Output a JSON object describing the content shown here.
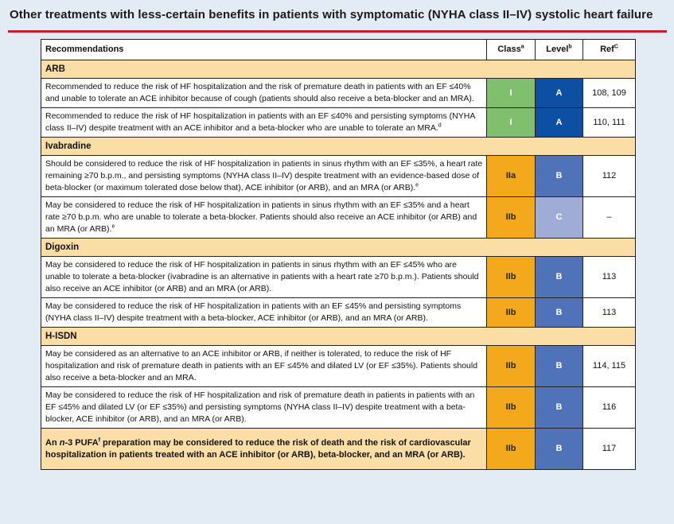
{
  "title": "Other treatments with less-certain benefits in patients with symptomatic (NYHA class II–IV) systolic heart failure",
  "header": {
    "recommendations": "Recommendations",
    "class": "Class",
    "class_sup": "a",
    "level": "Level",
    "level_sup": "b",
    "ref": "Ref",
    "ref_sup": "C"
  },
  "colors": {
    "title_rule": "#c4202b",
    "section_bg": "#fbdea6",
    "class_I": "#7fbf6e",
    "class_II": "#f4a91c",
    "level_A": "#0d4fa3",
    "level_B": "#4f72b9",
    "level_C": "#9eacd6"
  },
  "sections": [
    {
      "name": "ARB",
      "rows": [
        {
          "text": "Recommended to reduce the risk of HF hospitalization and the risk of premature death in patients with an EF ≤40% and unable to tolerate an ACE inhibitor because of cough (patients should also receive a beta-blocker and an MRA).",
          "class": "I",
          "level": "A",
          "ref": "108, 109"
        },
        {
          "text": "Recommended to reduce the risk of HF hospitalization in patients with an EF ≤40% and persisting symptoms (NYHA class II–IV) despite treatment with an ACE inhibitor and a beta-blocker who are unable to tolerate an MRA.",
          "sup": "d",
          "class": "I",
          "level": "A",
          "ref": "110, 111"
        }
      ]
    },
    {
      "name": "Ivabradine",
      "rows": [
        {
          "text": "Should be considered to reduce the risk of HF hospitalization in patients in sinus rhythm with an EF ≤35%, a heart rate remaining ≥70 b.p.m., and persisting symptoms (NYHA class II–IV) despite treatment with an evidence-based dose of beta-blocker (or maximum tolerated dose below that), ACE inhibitor (or ARB), and an MRA (or ARB).",
          "sup": "e",
          "class": "IIa",
          "level": "B",
          "ref": "112"
        },
        {
          "text": "May be considered to reduce the risk of HF hospitalization in patients in sinus rhythm with an EF ≤35% and a heart rate ≥70 b.p.m. who are unable to tolerate a beta-blocker. Patients should also receive an ACE inhibitor (or ARB) and an MRA (or ARB).",
          "sup": "e",
          "class": "IIb",
          "level": "C",
          "ref": "–"
        }
      ]
    },
    {
      "name": "Digoxin",
      "rows": [
        {
          "text": "May be considered to reduce the risk of HF hospitalization in patients in sinus rhythm with an EF ≤45% who are unable to tolerate a beta-blocker (ivabradine is an alternative in patients with a heart rate ≥70 b.p.m.). Patients should also receive an ACE inhibitor (or ARB) and an MRA (or ARB).",
          "class": "IIb",
          "level": "B",
          "ref": "113"
        },
        {
          "text": "May be considered to reduce the risk of HF hospitalization in patients with an EF ≤45% and persisting symptoms (NYHA class II–IV) despite treatment with a beta-blocker, ACE inhibitor (or ARB), and an MRA (or ARB).",
          "class": "IIb",
          "level": "B",
          "ref": "113"
        }
      ]
    },
    {
      "name": "H-ISDN",
      "rows": [
        {
          "text": "May be considered as an alternative to an ACE inhibitor or ARB, if neither is tolerated, to reduce the risk of HF hospitalization and risk of premature death in patients with an EF ≤45% and dilated LV (or EF ≤35%). Patients should also receive a beta-blocker and an MRA.",
          "class": "IIb",
          "level": "B",
          "ref": "114, 115"
        },
        {
          "text": "May be considered to reduce the risk of HF hospitalization and risk of premature death in patients in patients with an EF ≤45% and dilated LV (or EF ≤35%) and persisting symptoms (NYHA class II–IV) despite treatment with a beta-blocker, ACE inhibitor (or ARB), and an MRA (or ARB).",
          "class": "IIb",
          "level": "B",
          "ref": "116"
        }
      ]
    }
  ],
  "final_row": {
    "pre": "An ",
    "italic": "n",
    "mid": "-3 PUFA",
    "sup": "f",
    "post": " preparation may be considered to reduce the risk of death and the risk of cardiovascular hospitalization in patients treated with an ACE inhibitor (or ARB), beta-blocker, and an MRA (or ARB).",
    "class": "IIb",
    "level": "B",
    "ref": "117"
  }
}
